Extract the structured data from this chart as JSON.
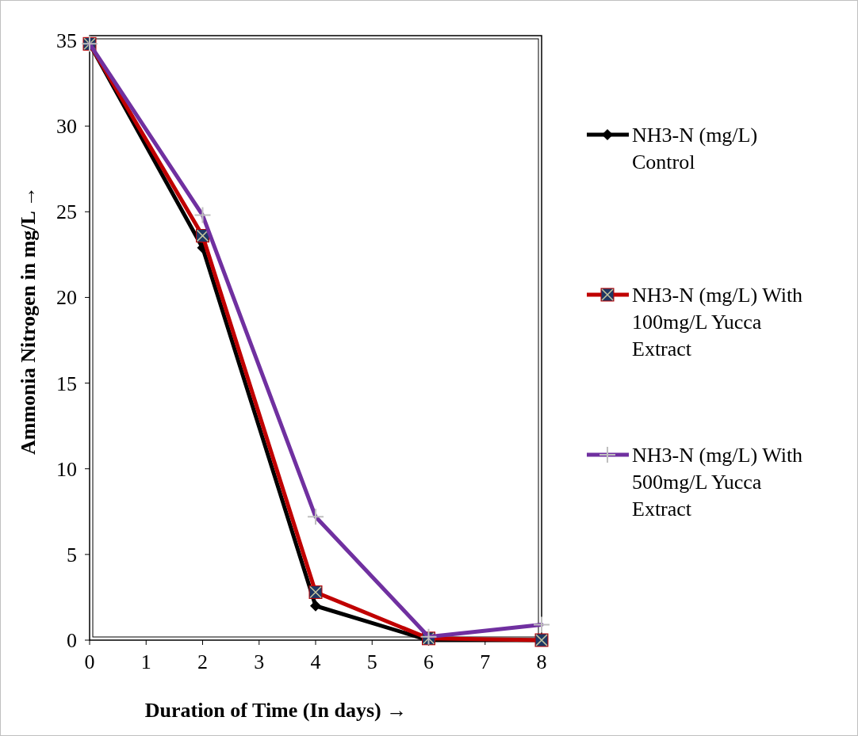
{
  "chart_data": {
    "type": "line",
    "xlabel": "Duration of Time (In days) →",
    "ylabel": "Ammonia Nitrogen in mg/L →",
    "x": [
      0,
      2,
      4,
      6,
      8
    ],
    "xlim": [
      0,
      8
    ],
    "xticks": [
      0,
      1,
      2,
      3,
      4,
      5,
      6,
      7,
      8
    ],
    "ylim": [
      0,
      35
    ],
    "yticks": [
      0,
      5,
      10,
      15,
      20,
      25,
      30,
      35
    ],
    "grid": false,
    "legend": "right",
    "series": [
      {
        "name": "NH3-N (mg/L) Control",
        "color": "#000000",
        "marker": "diamond",
        "values": [
          34.8,
          22.9,
          2.0,
          0,
          0
        ]
      },
      {
        "name": "NH3-N (mg/L) With 100mg/L Yucca Extract",
        "color": "#c00000",
        "marker": "square",
        "values": [
          34.8,
          23.6,
          2.8,
          0.1,
          0
        ]
      },
      {
        "name": "NH3-N (mg/L) With 500mg/L Yucca Extract",
        "color": "#7030a0",
        "marker": "cross",
        "values": [
          34.8,
          24.8,
          7.2,
          0.2,
          0.9
        ]
      }
    ]
  }
}
